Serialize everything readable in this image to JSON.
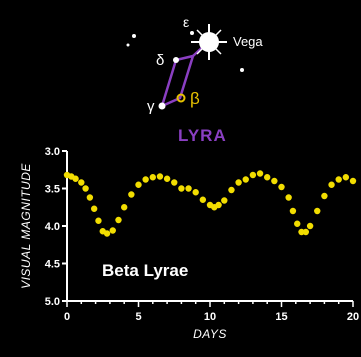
{
  "colors": {
    "background": "#000000",
    "axis": "#ffffff",
    "points": "#f2dd00",
    "constellation_lines": "#8a3fc2",
    "lyra_label": "#8a3fc2",
    "beta_marker": "#e6c200",
    "text": "#ffffff"
  },
  "constellation": {
    "name": "LYRA",
    "stars": {
      "epsilon": "ε",
      "vega": "Vega",
      "delta": "δ",
      "gamma": "γ",
      "beta": "β"
    }
  },
  "chart_data": {
    "type": "scatter",
    "title": "",
    "annotation": "Beta Lyrae",
    "xlabel": "DAYS",
    "ylabel": "VISUAL MAGNITUDE",
    "xlim": [
      0,
      20
    ],
    "ylim": [
      3.0,
      5.0
    ],
    "y_inverted": true,
    "x_ticks": [
      "0",
      "5",
      "10",
      "15",
      "20"
    ],
    "y_ticks": [
      "3.0",
      "3.5",
      "4.0",
      "4.5",
      "5.0"
    ],
    "grid": false,
    "series": [
      {
        "x": [
          0.0,
          0.3,
          0.6,
          1.0,
          1.3,
          1.6,
          1.9,
          2.2,
          2.5,
          2.8,
          3.2,
          3.6,
          4.0,
          4.5,
          5.0,
          5.5,
          6.0,
          6.5,
          7.0,
          7.5,
          8.0,
          8.5,
          9.0,
          9.5,
          10.0,
          10.3,
          10.6,
          11.0,
          11.5,
          12.0,
          12.5,
          13.0,
          13.5,
          14.0,
          14.5,
          15.0,
          15.5,
          15.8,
          16.1,
          16.4,
          16.7,
          17.0,
          17.5,
          18.0,
          18.5,
          19.0,
          19.5,
          20.0
        ],
        "y": [
          3.32,
          3.34,
          3.37,
          3.42,
          3.5,
          3.62,
          3.77,
          3.93,
          4.07,
          4.1,
          4.06,
          3.92,
          3.75,
          3.58,
          3.45,
          3.38,
          3.35,
          3.34,
          3.37,
          3.42,
          3.5,
          3.5,
          3.55,
          3.65,
          3.72,
          3.75,
          3.72,
          3.66,
          3.52,
          3.42,
          3.38,
          3.32,
          3.3,
          3.35,
          3.4,
          3.48,
          3.62,
          3.8,
          3.97,
          4.08,
          4.08,
          4.0,
          3.8,
          3.6,
          3.45,
          3.38,
          3.35,
          3.4
        ]
      }
    ]
  }
}
